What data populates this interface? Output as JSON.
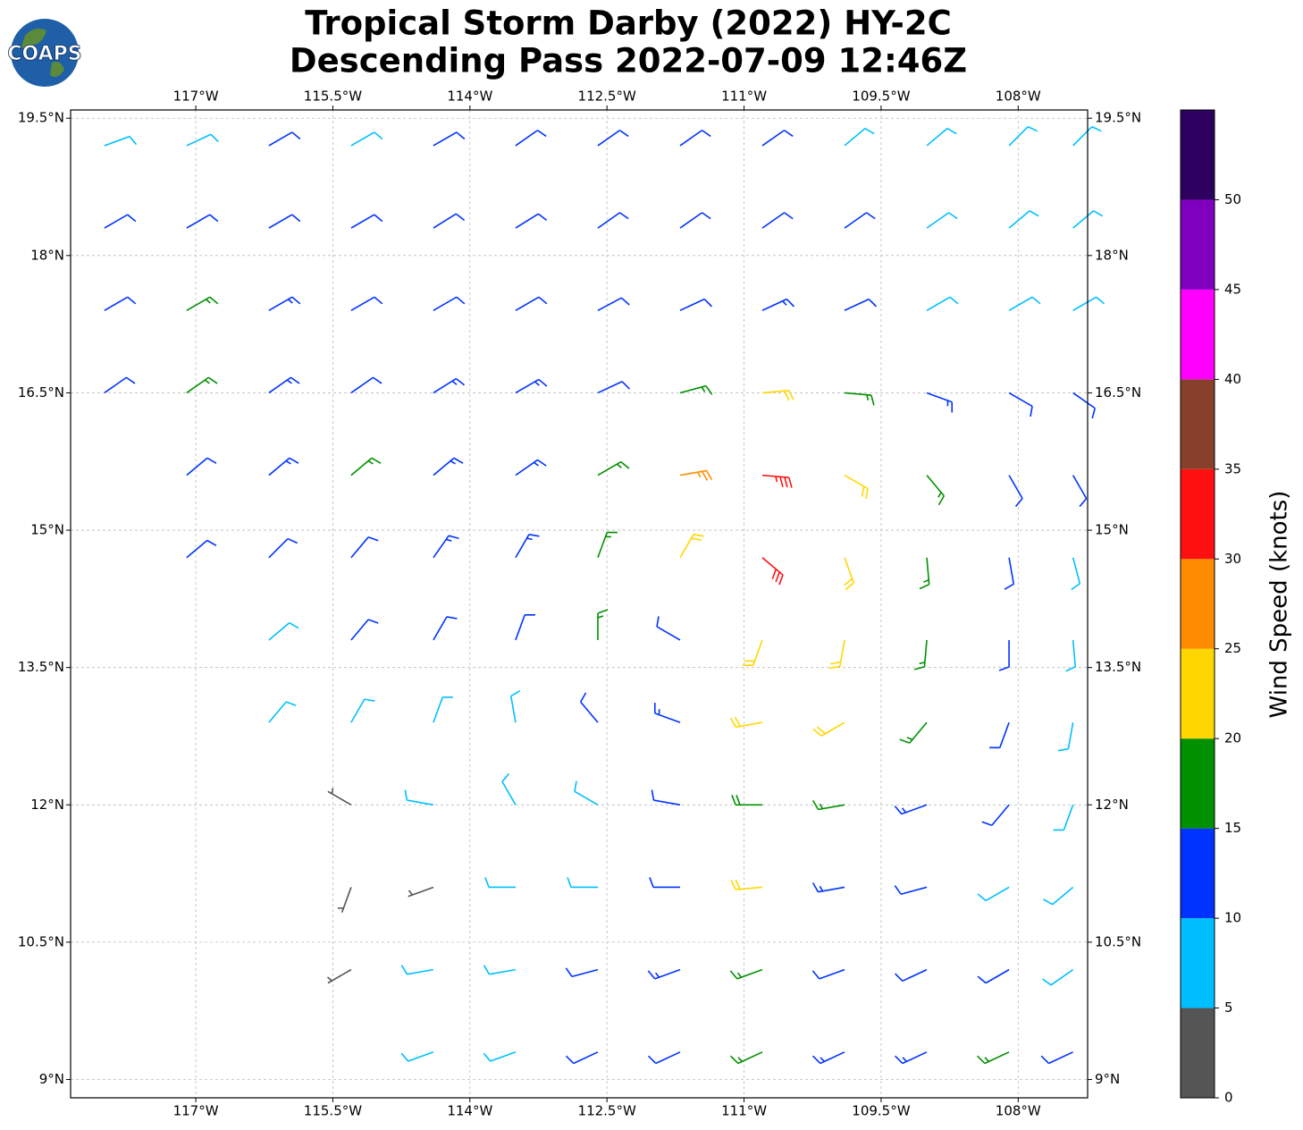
{
  "logo_text": "COAPS",
  "chart_data": {
    "type": "barbs",
    "title": "Tropical Storm Darby (2022) HY-2C",
    "subtitle": "Descending Pass 2022-07-09 12:46Z",
    "xlim": [
      -118.37,
      -107.24
    ],
    "ylim": [
      8.8,
      19.59
    ],
    "grid": true,
    "xticks": [
      {
        "value": -117,
        "label": "117°W"
      },
      {
        "value": -115.5,
        "label": "115.5°W"
      },
      {
        "value": -114,
        "label": "114°W"
      },
      {
        "value": -112.5,
        "label": "112.5°W"
      },
      {
        "value": -111,
        "label": "111°W"
      },
      {
        "value": -109.5,
        "label": "109.5°W"
      },
      {
        "value": -108,
        "label": "108°W"
      }
    ],
    "yticks": [
      {
        "value": 9,
        "label": "9°N"
      },
      {
        "value": 10.5,
        "label": "10.5°N"
      },
      {
        "value": 12,
        "label": "12°N"
      },
      {
        "value": 13.5,
        "label": "13.5°N"
      },
      {
        "value": 15,
        "label": "15°N"
      },
      {
        "value": 16.5,
        "label": "16.5°N"
      },
      {
        "value": 18,
        "label": "18°N"
      },
      {
        "value": 19.5,
        "label": "19.5°N"
      }
    ],
    "colorbar": {
      "label": "Wind Speed (knots)",
      "bounds": [
        0,
        5,
        10,
        15,
        20,
        25,
        30,
        35,
        40,
        45,
        50,
        55
      ],
      "colors": [
        "#555555",
        "#00bfff",
        "#0033ff",
        "#009000",
        "#ffd700",
        "#ff8c00",
        "#ff1010",
        "#87402a",
        "#ff00ff",
        "#8000c0",
        "#2e0060"
      ],
      "ticks": [
        0,
        5,
        10,
        15,
        20,
        25,
        30,
        35,
        40,
        45,
        50
      ]
    },
    "barbs": [
      [
        -118,
        19.2,
        9,
        70
      ],
      [
        -117.1,
        19.2,
        8,
        65
      ],
      [
        -116.2,
        19.2,
        11,
        60
      ],
      [
        -115.3,
        19.2,
        9,
        60
      ],
      [
        -114.4,
        19.2,
        12,
        60
      ],
      [
        -113.5,
        19.2,
        12,
        55
      ],
      [
        -112.6,
        19.2,
        11,
        55
      ],
      [
        -111.7,
        19.2,
        12,
        55
      ],
      [
        -110.8,
        19.2,
        11,
        55
      ],
      [
        -109.9,
        19.2,
        9,
        50
      ],
      [
        -109,
        19.2,
        8,
        50
      ],
      [
        -108.1,
        19.2,
        8,
        45
      ],
      [
        -107.4,
        19.2,
        9,
        45
      ],
      [
        -118,
        18.3,
        11,
        60
      ],
      [
        -117.1,
        18.3,
        12,
        60
      ],
      [
        -116.2,
        18.3,
        12,
        60
      ],
      [
        -115.3,
        18.3,
        12,
        60
      ],
      [
        -114.4,
        18.3,
        12,
        58
      ],
      [
        -113.5,
        18.3,
        12,
        58
      ],
      [
        -112.6,
        18.3,
        12,
        55
      ],
      [
        -111.7,
        18.3,
        12,
        55
      ],
      [
        -110.8,
        18.3,
        12,
        55
      ],
      [
        -109.9,
        18.3,
        11,
        55
      ],
      [
        -109,
        18.3,
        9,
        55
      ],
      [
        -108.1,
        18.3,
        9,
        50
      ],
      [
        -107.4,
        18.3,
        9,
        50
      ],
      [
        -118,
        17.4,
        12,
        60
      ],
      [
        -117.1,
        17.4,
        16,
        60
      ],
      [
        -116.2,
        17.4,
        13,
        60
      ],
      [
        -115.3,
        17.4,
        12,
        60
      ],
      [
        -114.4,
        17.4,
        12,
        60
      ],
      [
        -113.5,
        17.4,
        12,
        60
      ],
      [
        -112.6,
        17.4,
        12,
        62
      ],
      [
        -111.7,
        17.4,
        12,
        65
      ],
      [
        -110.8,
        17.4,
        13,
        65
      ],
      [
        -109.9,
        17.4,
        12,
        65
      ],
      [
        -109,
        17.4,
        9,
        60
      ],
      [
        -108.1,
        17.4,
        8,
        60
      ],
      [
        -107.4,
        17.4,
        9,
        60
      ],
      [
        -118,
        16.5,
        12,
        55
      ],
      [
        -117.1,
        16.5,
        17,
        55
      ],
      [
        -116.2,
        16.5,
        13,
        55
      ],
      [
        -115.3,
        16.5,
        12,
        55
      ],
      [
        -114.4,
        16.5,
        13,
        58
      ],
      [
        -113.5,
        16.5,
        13,
        60
      ],
      [
        -112.6,
        16.5,
        12,
        65
      ],
      [
        -111.7,
        16.5,
        16,
        75
      ],
      [
        -110.8,
        16.5,
        21,
        85
      ],
      [
        -109.9,
        16.5,
        17,
        95
      ],
      [
        -109,
        16.5,
        13,
        110
      ],
      [
        -108.1,
        16.5,
        10,
        120
      ],
      [
        -107.4,
        16.5,
        10,
        125
      ],
      [
        -117.1,
        15.6,
        11,
        50
      ],
      [
        -116.2,
        15.6,
        13,
        50
      ],
      [
        -115.3,
        15.6,
        16,
        50
      ],
      [
        -114.4,
        15.6,
        13,
        50
      ],
      [
        -113.5,
        15.6,
        13,
        55
      ],
      [
        -112.6,
        15.6,
        17,
        60
      ],
      [
        -111.7,
        15.6,
        27,
        80
      ],
      [
        -110.8,
        15.6,
        33,
        95
      ],
      [
        -109.9,
        15.6,
        21,
        120
      ],
      [
        -109,
        15.6,
        16,
        140
      ],
      [
        -108.1,
        15.6,
        12,
        150
      ],
      [
        -107.4,
        15.6,
        10,
        150
      ],
      [
        -117.1,
        14.7,
        12,
        50
      ],
      [
        -116.2,
        14.7,
        12,
        45
      ],
      [
        -115.3,
        14.7,
        12,
        40
      ],
      [
        -114.4,
        14.7,
        13,
        35
      ],
      [
        -113.5,
        14.7,
        14,
        30
      ],
      [
        -112.6,
        14.7,
        17,
        20
      ],
      [
        -111.7,
        14.7,
        22,
        30
      ],
      [
        -110.8,
        14.7,
        30,
        130
      ],
      [
        -109.9,
        14.7,
        22,
        160
      ],
      [
        -109,
        14.7,
        15,
        175
      ],
      [
        -108.1,
        14.7,
        12,
        170
      ],
      [
        -107.4,
        14.7,
        9,
        165
      ],
      [
        -116.2,
        13.8,
        9,
        50
      ],
      [
        -115.3,
        13.8,
        11,
        40
      ],
      [
        -114.4,
        13.8,
        12,
        30
      ],
      [
        -113.5,
        13.8,
        12,
        20
      ],
      [
        -112.6,
        13.8,
        17,
        0
      ],
      [
        -111.7,
        13.8,
        12,
        300
      ],
      [
        -110.8,
        13.8,
        22,
        200
      ],
      [
        -109.9,
        13.8,
        21,
        190
      ],
      [
        -109,
        13.8,
        15,
        185
      ],
      [
        -108.1,
        13.8,
        11,
        180
      ],
      [
        -107.4,
        13.8,
        9,
        175
      ],
      [
        -116.2,
        12.9,
        8,
        40
      ],
      [
        -115.3,
        12.9,
        8,
        30
      ],
      [
        -114.4,
        12.9,
        8,
        20
      ],
      [
        -113.5,
        12.9,
        9,
        350
      ],
      [
        -112.6,
        12.9,
        12,
        320
      ],
      [
        -111.7,
        12.9,
        14,
        290
      ],
      [
        -110.8,
        12.9,
        22,
        260
      ],
      [
        -109.9,
        12.9,
        20,
        240
      ],
      [
        -109,
        12.9,
        15,
        220
      ],
      [
        -108.1,
        12.9,
        11,
        200
      ],
      [
        -107.4,
        12.9,
        9,
        190
      ],
      [
        -115.3,
        12.0,
        3,
        300
      ],
      [
        -114.4,
        12.0,
        9,
        280
      ],
      [
        -113.5,
        12.0,
        8,
        330
      ],
      [
        -112.6,
        12.0,
        8,
        300
      ],
      [
        -111.7,
        12.0,
        12,
        280
      ],
      [
        -110.8,
        12.0,
        18,
        270
      ],
      [
        -109.9,
        12.0,
        17,
        260
      ],
      [
        -109,
        12.0,
        14,
        250
      ],
      [
        -108.1,
        12.0,
        10,
        220
      ],
      [
        -107.4,
        12.0,
        8,
        200
      ],
      [
        -115.3,
        11.1,
        3,
        200
      ],
      [
        -114.4,
        11.1,
        3,
        250
      ],
      [
        -113.5,
        11.1,
        8,
        270
      ],
      [
        -112.6,
        11.1,
        8,
        270
      ],
      [
        -111.7,
        11.1,
        11,
        270
      ],
      [
        -110.8,
        11.1,
        22,
        265
      ],
      [
        -109.9,
        11.1,
        14,
        260
      ],
      [
        -109,
        11.1,
        12,
        255
      ],
      [
        -108.1,
        11.1,
        9,
        240
      ],
      [
        -107.4,
        11.1,
        9,
        230
      ],
      [
        -115.3,
        10.2,
        4,
        240
      ],
      [
        -114.4,
        10.2,
        8,
        260
      ],
      [
        -113.5,
        10.2,
        9,
        260
      ],
      [
        -112.6,
        10.2,
        11,
        255
      ],
      [
        -111.7,
        10.2,
        13,
        250
      ],
      [
        -110.8,
        10.2,
        15,
        250
      ],
      [
        -109.9,
        10.2,
        12,
        250
      ],
      [
        -109,
        10.2,
        11,
        245
      ],
      [
        -108.1,
        10.2,
        10,
        240
      ],
      [
        -107.4,
        10.2,
        9,
        235
      ],
      [
        -114.4,
        9.3,
        8,
        250
      ],
      [
        -113.5,
        9.3,
        9,
        250
      ],
      [
        -112.6,
        9.3,
        11,
        245
      ],
      [
        -111.7,
        9.3,
        12,
        245
      ],
      [
        -110.8,
        9.3,
        16,
        245
      ],
      [
        -109.9,
        9.3,
        14,
        245
      ],
      [
        -109,
        9.3,
        13,
        245
      ],
      [
        -108.1,
        9.3,
        17,
        245
      ],
      [
        -107.4,
        9.3,
        12,
        245
      ]
    ]
  }
}
